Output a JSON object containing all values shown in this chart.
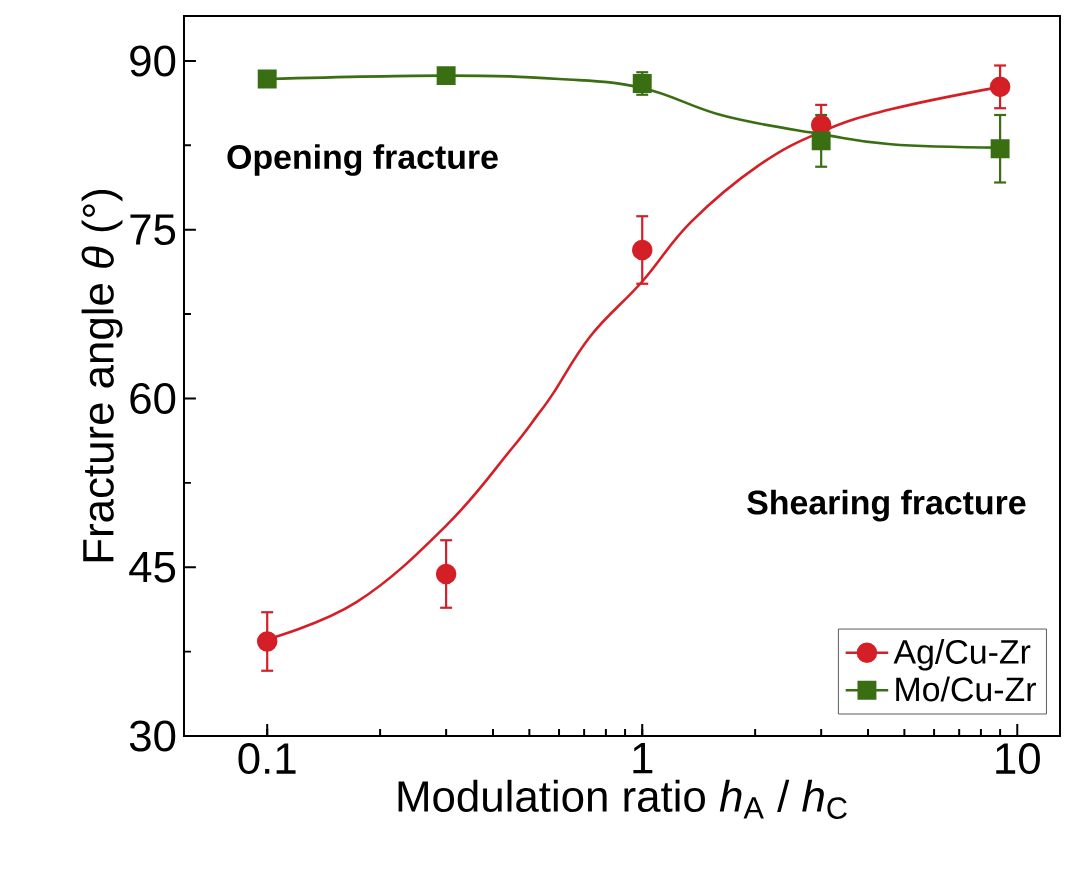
{
  "chart_data": {
    "type": "scatter",
    "xlabel": "Modulation ratio *h*$_{A}$ / *h*$_{C}$",
    "ylabel": "Fracture angle *θ* (°)",
    "log": "x",
    "xlim": [
      0.06,
      13
    ],
    "ylim": [
      30,
      94
    ],
    "xticks": [
      0.1,
      1,
      10
    ],
    "yticks": [
      30,
      45,
      60,
      75,
      90
    ],
    "legend": "bottom right",
    "grid": false,
    "annotations": [
      "Opening fracture",
      "Shearing fracture"
    ],
    "series": [
      {
        "name": "Ag/Cu-Zr",
        "marker": "circle",
        "color": "#d41f26",
        "x": [
          0.1,
          0.3,
          1,
          3,
          9
        ],
        "values": [
          38.4,
          44.4,
          73.2,
          84.3,
          87.7
        ],
        "errors": [
          2.6,
          3,
          3,
          1.8,
          1.9
        ]
      },
      {
        "name": "Mo/Cu-Zr",
        "marker": "square",
        "color": "#3a6e12",
        "x": [
          0.1,
          0.3,
          1,
          3,
          9
        ],
        "values": [
          88.4,
          88.7,
          88.0,
          82.9,
          82.2
        ],
        "errors": [
          null,
          null,
          1,
          2.3,
          3
        ]
      },
      {
        "type": "line",
        "color": "#d41f26",
        "x": [
          0.1,
          0.173,
          0.3,
          0.445,
          0.525,
          0.58,
          0.73,
          1,
          1.35,
          2.04,
          3,
          4.6,
          9
        ],
        "values": [
          38.6,
          41.9,
          48.7,
          55.4,
          58.5,
          60.5,
          65.6,
          70.4,
          75.7,
          80.7,
          83.7,
          85.7,
          87.7
        ]
      },
      {
        "type": "line",
        "color": "#3a6e12",
        "x": [
          0.1,
          0.3,
          0.6,
          1,
          1.66,
          3,
          4.6,
          9
        ],
        "values": [
          88.4,
          88.7,
          88.4,
          87.6,
          85.1,
          83.5,
          82.6,
          82.3
        ]
      }
    ]
  }
}
